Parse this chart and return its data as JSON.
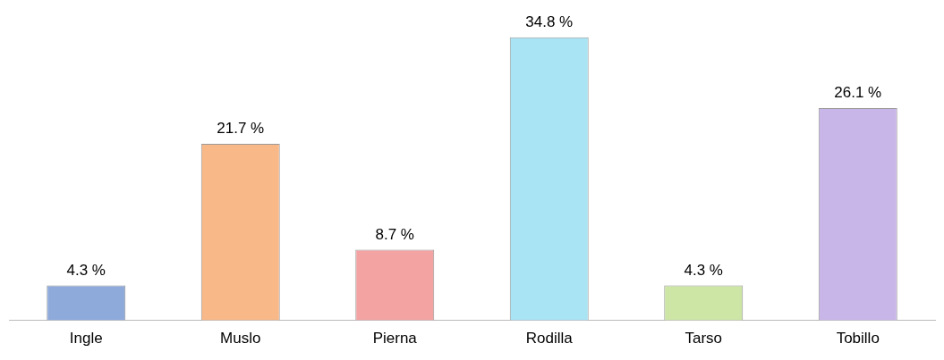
{
  "chart_data": {
    "type": "bar",
    "categories": [
      "Ingle",
      "Muslo",
      "Pierna",
      "Rodilla",
      "Tarso",
      "Tobillo"
    ],
    "values": [
      4.3,
      21.7,
      8.7,
      34.8,
      4.3,
      26.1
    ],
    "colors": [
      "#8eaadb",
      "#f9b887",
      "#f4a3a3",
      "#a9e4f5",
      "#cde6a6",
      "#c9b6e8"
    ],
    "value_labels": [
      "4.3 %",
      "21.7 %",
      "8.7 %",
      "34.8 %",
      "4.3 %",
      "26.1 %"
    ],
    "grid": false,
    "legend": false
  }
}
